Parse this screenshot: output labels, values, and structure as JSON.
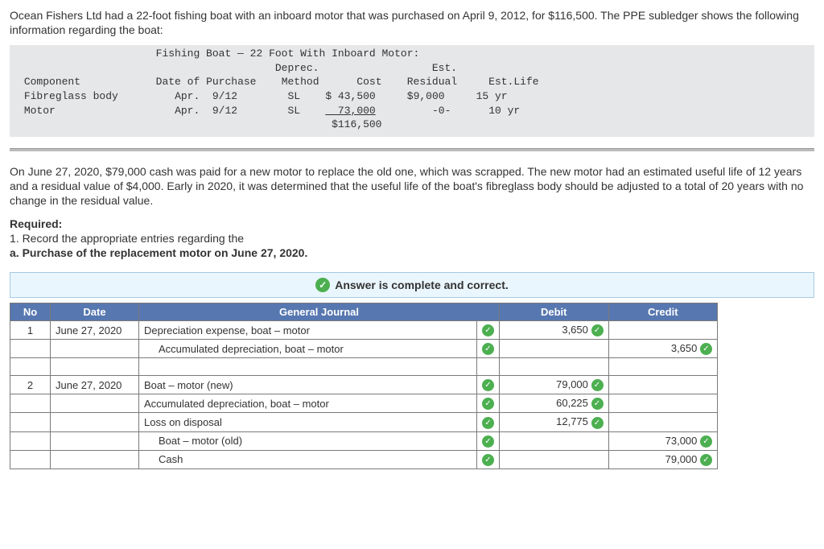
{
  "intro": "Ocean Fishers Ltd had a 22-foot fishing boat with an inboard motor that was purchased on April 9, 2012, for $116,500. The PPE subledger shows the following information regarding the boat:",
  "ledger": {
    "title": "Fishing Boat — 22 Foot With Inboard Motor:",
    "headers": {
      "component": "Component",
      "date": "Date of Purchase",
      "method": "Deprec.\nMethod",
      "cost": "Cost",
      "residual": "Est.\nResidual",
      "life": "Est.Life"
    },
    "rows": [
      {
        "component": "Fibreglass body",
        "date": "Apr.  9/12",
        "method": "SL",
        "cost": "$ 43,500",
        "residual": "$9,000",
        "life": "15 yr"
      },
      {
        "component": "Motor",
        "date": "Apr.  9/12",
        "method": "SL",
        "cost": "  73,000",
        "residual": "  -0-",
        "life": "10 yr"
      }
    ],
    "total": "$116,500"
  },
  "para2": "On June 27, 2020, $79,000 cash was paid for a new motor to replace the old one, which was scrapped. The new motor had an estimated useful life of 12 years and a residual value of $4,000. Early in 2020, it was determined that the useful life of the boat's fibreglass body should be adjusted to a total of 20 years with no change in the residual value.",
  "req": {
    "head": "Required:",
    "l1": "1. Record the appropriate entries regarding the",
    "l2": "a. Purchase of the replacement motor on June 27, 2020."
  },
  "answer_banner": "Answer is complete and correct.",
  "jh": {
    "no": "No",
    "date": "Date",
    "gj": "General Journal",
    "debit": "Debit",
    "credit": "Credit"
  },
  "journal": [
    {
      "no": "1",
      "date": "June 27, 2020",
      "acc": "Depreciation expense, boat – motor",
      "debit": "3,650",
      "credit": "",
      "indent": false
    },
    {
      "no": "",
      "date": "",
      "acc": "Accumulated depreciation, boat – motor",
      "debit": "",
      "credit": "3,650",
      "indent": true
    },
    {
      "no": "",
      "date": "",
      "acc": "",
      "debit": "",
      "credit": "",
      "indent": false,
      "blank": true
    },
    {
      "no": "2",
      "date": "June 27, 2020",
      "acc": "Boat – motor (new)",
      "debit": "79,000",
      "credit": "",
      "indent": false
    },
    {
      "no": "",
      "date": "",
      "acc": "Accumulated depreciation, boat – motor",
      "debit": "60,225",
      "credit": "",
      "indent": false
    },
    {
      "no": "",
      "date": "",
      "acc": "Loss on disposal",
      "debit": "12,775",
      "credit": "",
      "indent": false
    },
    {
      "no": "",
      "date": "",
      "acc": "Boat – motor (old)",
      "debit": "",
      "credit": "73,000",
      "indent": true
    },
    {
      "no": "",
      "date": "",
      "acc": "Cash",
      "debit": "",
      "credit": "79,000",
      "indent": true
    }
  ]
}
